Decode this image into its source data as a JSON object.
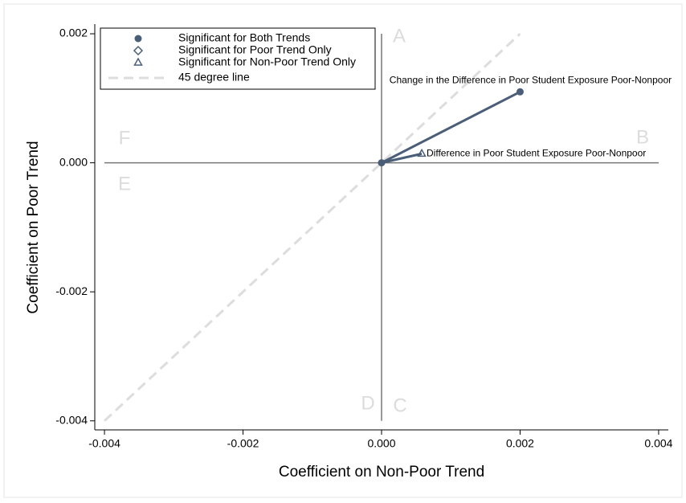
{
  "chart_data": {
    "type": "scatter",
    "xlabel": "Coefficient on Non-Poor Trend",
    "ylabel": "Coefficient on Poor Trend",
    "xlim": [
      -0.00414,
      0.00414
    ],
    "ylim": [
      -0.00414,
      0.00215
    ],
    "xticks": [
      -0.004,
      -0.002,
      {
        "value": 0,
        "label": "0.000"
      },
      0.002,
      0.004
    ],
    "yticks": [
      -0.004,
      -0.002,
      {
        "value": 0,
        "label": "0.000"
      },
      0.002
    ],
    "series": [
      {
        "name": "Significant for Both Trends",
        "marker": "circle",
        "color": "#4a5e78",
        "x": [
          0,
          0.002
        ],
        "y": [
          0,
          0.0011
        ],
        "labels": [
          null,
          "Change in the Difference in Poor Student Exposure Poor-Nonpoor"
        ]
      },
      {
        "name": "Significant for Poor Trend Only",
        "marker": "diamond",
        "color": "#4a5e78",
        "x": [],
        "y": [],
        "labels": []
      },
      {
        "name": "Significant for Non-Poor Trend Only",
        "marker": "triangle",
        "color": "#4a5e78",
        "x": [
          0.00058
        ],
        "y": [
          0.00014
        ],
        "labels": [
          "Difference in Poor Student Exposure Poor-Nonpoor"
        ]
      }
    ],
    "diagonal": {
      "name": "45 degree line",
      "from": -0.004,
      "to": 0.002,
      "color": "#dddddd"
    },
    "xline": {
      "value": 0,
      "from": -0.004,
      "to": 0.002
    },
    "yline": {
      "value": 0,
      "from": -0.004,
      "to": 0.004
    },
    "quadrant_labels": [
      "A",
      "B",
      "C",
      "D",
      "E",
      "F"
    ],
    "legend": "top-left"
  }
}
